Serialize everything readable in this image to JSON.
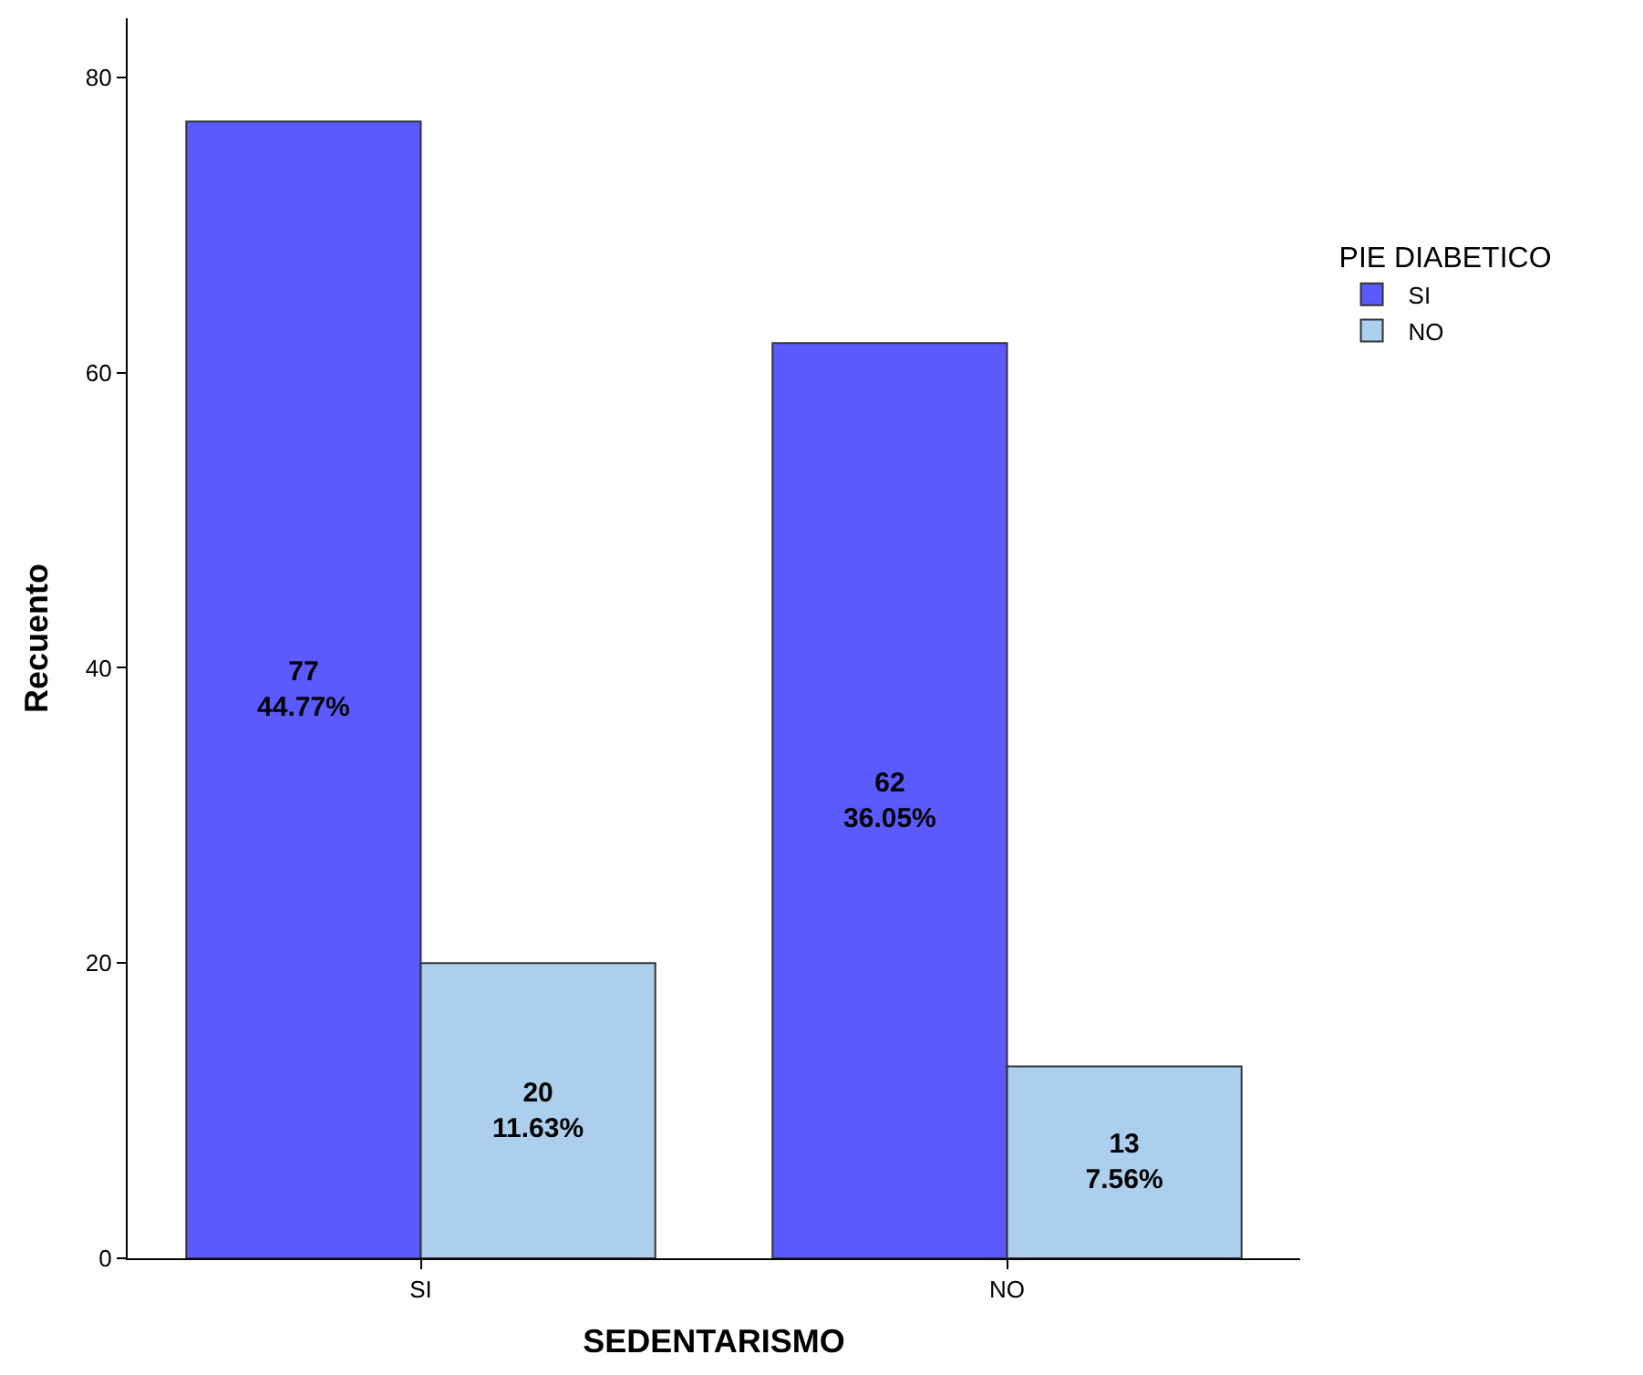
{
  "chart_data": {
    "type": "bar",
    "xlabel": "SEDENTARISMO",
    "ylabel": "Recuento",
    "legend_title": "PIE DIABETICO",
    "categories": [
      "SI",
      "NO"
    ],
    "series": [
      {
        "name": "SI",
        "color": "#5a5aff",
        "values": [
          77,
          62
        ],
        "value_labels": [
          "77\n44.77%",
          "62\n36.05%"
        ]
      },
      {
        "name": "NO",
        "color": "#abcfed",
        "values": [
          20,
          13
        ],
        "value_labels": [
          "20\n11.63%",
          "13\n7.56%"
        ]
      }
    ],
    "ylim": [
      0,
      84
    ],
    "yticks": [
      0,
      20,
      40,
      60,
      80
    ],
    "legend": "right"
  }
}
